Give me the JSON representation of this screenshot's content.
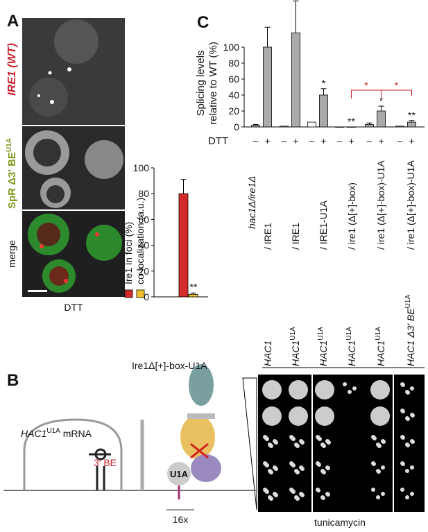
{
  "panels": {
    "a": "A",
    "b": "B",
    "c": "C"
  },
  "images": {
    "row1": "IRE1 (WT)",
    "row2": "SpR Δ3' BE",
    "row2_sup": "U1A",
    "row3": "merge",
    "condition": "DTT"
  },
  "chart_data": [
    {
      "type": "bar",
      "categories": [
        null
      ],
      "series": [
        {
          "name": "Ire1 in foci (%)",
          "color": "#d42a2a",
          "values": [
            80
          ],
          "errors": [
            11
          ]
        },
        {
          "name": "co-localization (a.u.)",
          "color": "#f2c12e",
          "values": [
            2
          ],
          "errors": [
            1
          ],
          "annotations": [
            "**"
          ]
        }
      ],
      "ylim": [
        0,
        100
      ],
      "yticks": [
        0,
        20,
        40,
        60,
        80,
        100
      ]
    },
    {
      "type": "bar",
      "ylabel": [
        "Splicing levels",
        "relative to WT (%)"
      ],
      "xlabel": "DTT",
      "categories": [
        "–",
        "+",
        "–",
        "+",
        "–",
        "+",
        "–",
        "+",
        "–",
        "+",
        "–",
        "+"
      ],
      "values": [
        2,
        100,
        1,
        118,
        6,
        40,
        0,
        0,
        3,
        20,
        1,
        6
      ],
      "errors": [
        1,
        25,
        null,
        40,
        null,
        8,
        null,
        null,
        2,
        6,
        null,
        2
      ],
      "colors": [
        "#aaaaaa",
        "#aaaaaa",
        "#aaaaaa",
        "#aaaaaa",
        "#ffffff",
        "#aaaaaa",
        "#aaaaaa",
        "#aaaaaa",
        "#aaaaaa",
        "#aaaaaa",
        "#aaaaaa",
        "#aaaaaa"
      ],
      "annotations": [
        null,
        null,
        null,
        null,
        null,
        "*",
        null,
        "**",
        null,
        "*",
        null,
        "**"
      ],
      "brackets": [
        {
          "from": 7,
          "to": 9,
          "label": "*"
        },
        {
          "from": 9,
          "to": 11,
          "label": "*"
        }
      ],
      "ylim": [
        0,
        140
      ],
      "yticks": [
        0,
        20,
        40,
        60,
        80,
        100
      ]
    }
  ],
  "strains": {
    "header": "hac1Δ/ire1Δ",
    "columns": [
      {
        "hac": "HAC1",
        "sup": "",
        "ire": "/ IRE1"
      },
      {
        "hac": "HAC1",
        "sup": "U1A",
        "ire": "/ IRE1"
      },
      {
        "hac": "HAC1",
        "sup": "U1A",
        "ire": "/ IRE1-U1A"
      },
      {
        "hac": "HAC1",
        "sup": "U1A",
        "ire": "/ ire1 (Δ[+]-box)"
      },
      {
        "hac": "HAC1",
        "sup": "U1A",
        "ire": "/ ire1 (Δ[+]-box)-U1A"
      },
      {
        "hac": "HAC1 Δ3' BE",
        "sup": "U1A",
        "ire": "/ ire1 (Δ[+]-box)-U1A"
      }
    ],
    "plate": "tunicamycin"
  },
  "diagram": {
    "construct": "Ire1Δ[+]-box-U1A",
    "mrna": "HAC1",
    "mrna_sup": "U1A",
    "mrna_suffix": " mRNA",
    "be": "3' BE",
    "u1a": "U1A",
    "repeat": "16x"
  }
}
